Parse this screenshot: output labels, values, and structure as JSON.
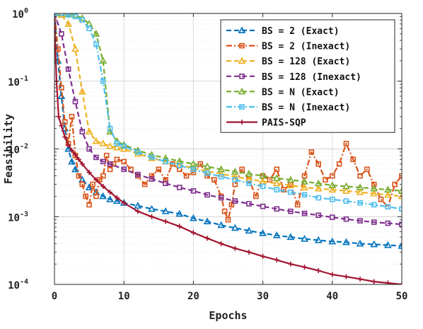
{
  "chart_data": {
    "type": "line",
    "xlabel": "Epochs",
    "ylabel": "Feasibility",
    "xlim": [
      0,
      50
    ],
    "ylim": [
      0.0001,
      1
    ],
    "yscale": "log",
    "x_ticks": [
      "0",
      "10",
      "20",
      "30",
      "40",
      "50"
    ],
    "y_ticks": [
      {
        "base": "10",
        "exp": "0"
      },
      {
        "base": "10",
        "exp": "-1"
      },
      {
        "base": "10",
        "exp": "-2"
      },
      {
        "base": "10",
        "exp": "-3"
      },
      {
        "base": "10",
        "exp": "-4"
      }
    ],
    "grid": true,
    "legend_position": "top-right",
    "series": [
      {
        "name": "BS = 2 (Exact)",
        "color": "#0072BD",
        "dash": "dashed",
        "marker": "triangle",
        "x": [
          0,
          0.5,
          1,
          1.5,
          2,
          2.5,
          3,
          4,
          5,
          6,
          7,
          8,
          9,
          10,
          12,
          14,
          16,
          18,
          20,
          22,
          24,
          26,
          28,
          30,
          32,
          34,
          36,
          38,
          40,
          42,
          44,
          46,
          48,
          50
        ],
        "y": [
          1,
          0.2,
          0.06,
          0.02,
          0.01,
          0.0065,
          0.005,
          0.0035,
          0.0027,
          0.0023,
          0.002,
          0.0018,
          0.0017,
          0.0016,
          0.00145,
          0.0013,
          0.0012,
          0.0011,
          0.00095,
          0.00085,
          0.00075,
          0.00068,
          0.00062,
          0.00057,
          0.00053,
          0.0005,
          0.00047,
          0.00045,
          0.00043,
          0.00042,
          0.0004,
          0.00039,
          0.00038,
          0.00037
        ]
      },
      {
        "name": "BS = 2 (Inexact)",
        "color": "#D95319",
        "dash": "dashdot",
        "marker": "square",
        "x": [
          0,
          0.5,
          1,
          1.5,
          2,
          2.5,
          3,
          3.5,
          4,
          4.5,
          5,
          5.5,
          6,
          6.5,
          7,
          7.5,
          8,
          8.5,
          9,
          10,
          11,
          12,
          13,
          14,
          15,
          16,
          17,
          18,
          19,
          20,
          21,
          22,
          23,
          24,
          24.5,
          25,
          25.5,
          26,
          27,
          28,
          29,
          30,
          31,
          32,
          33,
          34,
          35,
          36,
          37,
          38,
          39,
          40,
          41,
          42,
          43,
          44,
          45,
          46,
          47,
          48,
          49,
          50
        ],
        "y": [
          1,
          0.3,
          0.08,
          0.025,
          0.012,
          0.03,
          0.008,
          0.004,
          0.003,
          0.002,
          0.0015,
          0.003,
          0.002,
          0.0035,
          0.004,
          0.008,
          0.005,
          0.006,
          0.007,
          0.0065,
          0.005,
          0.004,
          0.003,
          0.004,
          0.005,
          0.0035,
          0.006,
          0.005,
          0.004,
          0.0045,
          0.006,
          0.004,
          0.0035,
          0.002,
          0.0012,
          0.0009,
          0.0015,
          0.003,
          0.005,
          0.0035,
          0.002,
          0.004,
          0.0035,
          0.005,
          0.0025,
          0.003,
          0.0015,
          0.004,
          0.009,
          0.006,
          0.0035,
          0.004,
          0.006,
          0.012,
          0.007,
          0.004,
          0.005,
          0.003,
          0.0018,
          0.0014,
          0.003,
          0.004
        ]
      },
      {
        "name": "BS = 128 (Exact)",
        "color": "#EDB120",
        "dash": "dashed",
        "marker": "triangle",
        "x": [
          0,
          1,
          2,
          3,
          4,
          5,
          6,
          7,
          8,
          9,
          10,
          12,
          14,
          16,
          18,
          20,
          22,
          24,
          26,
          28,
          30,
          32,
          34,
          36,
          38,
          40,
          42,
          44,
          46,
          48,
          50
        ],
        "y": [
          1,
          0.95,
          0.7,
          0.3,
          0.07,
          0.018,
          0.013,
          0.012,
          0.011,
          0.0105,
          0.01,
          0.0085,
          0.0073,
          0.0065,
          0.0058,
          0.0052,
          0.0047,
          0.0043,
          0.0039,
          0.0036,
          0.0033,
          0.0031,
          0.0029,
          0.0027,
          0.0026,
          0.0025,
          0.0024,
          0.0023,
          0.0022,
          0.0021,
          0.002
        ]
      },
      {
        "name": "BS = 128 (Inexact)",
        "color": "#7E2F8E",
        "dash": "dashed",
        "marker": "square",
        "x": [
          0,
          1,
          2,
          3,
          4,
          5,
          6,
          7,
          8,
          10,
          12,
          14,
          16,
          18,
          20,
          22,
          24,
          26,
          28,
          30,
          32,
          34,
          36,
          38,
          40,
          42,
          44,
          46,
          48,
          50
        ],
        "y": [
          1,
          0.5,
          0.15,
          0.05,
          0.018,
          0.01,
          0.0075,
          0.0065,
          0.006,
          0.005,
          0.0042,
          0.0036,
          0.0031,
          0.0027,
          0.0024,
          0.0021,
          0.0019,
          0.0017,
          0.00155,
          0.00142,
          0.0013,
          0.0012,
          0.00112,
          0.00105,
          0.00098,
          0.00092,
          0.00087,
          0.00083,
          0.0008,
          0.00077
        ]
      },
      {
        "name": "BS = N (Exact)",
        "color": "#77AC30",
        "dash": "dashed",
        "marker": "triangle",
        "x": [
          0,
          1,
          2,
          3,
          4,
          5,
          6,
          7,
          8,
          9,
          10,
          12,
          14,
          16,
          18,
          20,
          22,
          24,
          26,
          28,
          30,
          32,
          34,
          36,
          38,
          40,
          42,
          44,
          46,
          48,
          50
        ],
        "y": [
          1,
          1,
          0.98,
          0.95,
          0.85,
          0.7,
          0.5,
          0.2,
          0.018,
          0.013,
          0.0115,
          0.0095,
          0.0082,
          0.0073,
          0.0066,
          0.006,
          0.0055,
          0.005,
          0.0046,
          0.0043,
          0.004,
          0.0037,
          0.0035,
          0.0033,
          0.0031,
          0.0029,
          0.0028,
          0.0027,
          0.0026,
          0.0025,
          0.0024
        ]
      },
      {
        "name": "BS = N (Inexact)",
        "color": "#4DBEEE",
        "dash": "dashdot",
        "marker": "square",
        "x": [
          0,
          1,
          2,
          3,
          4,
          5,
          6,
          7,
          8,
          9,
          10,
          12,
          14,
          16,
          18,
          20,
          22,
          24,
          26,
          28,
          30,
          32,
          34,
          36,
          38,
          40,
          42,
          44,
          46,
          48,
          50
        ],
        "y": [
          1,
          1,
          0.95,
          0.9,
          0.8,
          0.6,
          0.35,
          0.1,
          0.02,
          0.012,
          0.011,
          0.009,
          0.0075,
          0.0065,
          0.0057,
          0.005,
          0.0044,
          0.0039,
          0.0035,
          0.0031,
          0.0028,
          0.0025,
          0.0023,
          0.0021,
          0.0019,
          0.0018,
          0.0017,
          0.0016,
          0.0015,
          0.0014,
          0.0013
        ]
      },
      {
        "name": "PAIS-SQP",
        "color": "#A2142F",
        "dash": "solid",
        "marker": "plus",
        "x": [
          0,
          0.3,
          0.6,
          1,
          1.5,
          2,
          2.5,
          3,
          3.5,
          4,
          5,
          6,
          7,
          8,
          9,
          10,
          12,
          14,
          16,
          18,
          20,
          22,
          24,
          26,
          28,
          30,
          32,
          34,
          36,
          38,
          40,
          42,
          44,
          46,
          48,
          50
        ],
        "y": [
          0.8,
          0.1,
          0.03,
          0.022,
          0.015,
          0.0115,
          0.0095,
          0.0082,
          0.007,
          0.006,
          0.0045,
          0.0035,
          0.0028,
          0.0023,
          0.0019,
          0.0016,
          0.0012,
          0.001,
          0.00085,
          0.00072,
          0.00058,
          0.00048,
          0.0004,
          0.00034,
          0.0003,
          0.00026,
          0.00023,
          0.0002,
          0.00018,
          0.00016,
          0.00014,
          0.00013,
          0.00012,
          0.00011,
          0.000105,
          0.0001
        ]
      }
    ]
  }
}
